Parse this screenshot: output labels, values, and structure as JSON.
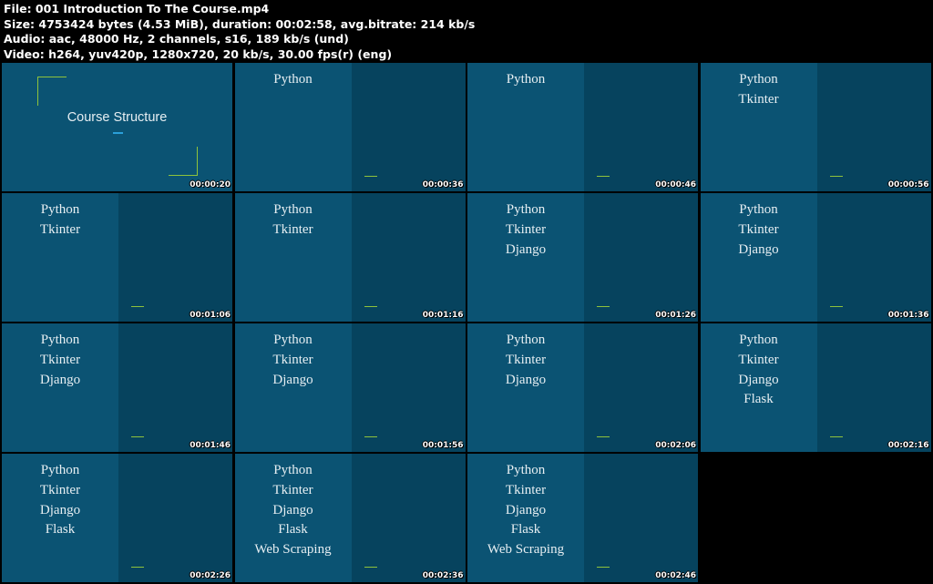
{
  "info": {
    "file_line": "File: 001 Introduction To The Course.mp4",
    "size_line": "Size: 4753424 bytes (4.53 MiB), duration: 00:02:58, avg.bitrate: 214 kb/s",
    "audio_line": "Audio: aac, 48000 Hz, 2 channels, s16, 189 kb/s (und)",
    "video_line": "Video: h264, yuv420p, 1280x720, 20 kb/s, 30.00 fps(r) (eng)"
  },
  "title_slide": {
    "title": "Course Structure",
    "timestamp": "00:00:20"
  },
  "thumbnails": [
    {
      "timestamp": "00:00:36",
      "topics": [
        "Python"
      ]
    },
    {
      "timestamp": "00:00:46",
      "topics": [
        "Python"
      ]
    },
    {
      "timestamp": "00:00:56",
      "topics": [
        "Python",
        "Tkinter"
      ]
    },
    {
      "timestamp": "00:01:06",
      "topics": [
        "Python",
        "Tkinter"
      ]
    },
    {
      "timestamp": "00:01:16",
      "topics": [
        "Python",
        "Tkinter"
      ]
    },
    {
      "timestamp": "00:01:26",
      "topics": [
        "Python",
        "Tkinter",
        "Django"
      ]
    },
    {
      "timestamp": "00:01:36",
      "topics": [
        "Python",
        "Tkinter",
        "Django"
      ]
    },
    {
      "timestamp": "00:01:46",
      "topics": [
        "Python",
        "Tkinter",
        "Django"
      ]
    },
    {
      "timestamp": "00:01:56",
      "topics": [
        "Python",
        "Tkinter",
        "Django"
      ]
    },
    {
      "timestamp": "00:02:06",
      "topics": [
        "Python",
        "Tkinter",
        "Django"
      ]
    },
    {
      "timestamp": "00:02:16",
      "topics": [
        "Python",
        "Tkinter",
        "Django",
        "Flask"
      ]
    },
    {
      "timestamp": "00:02:26",
      "topics": [
        "Python",
        "Tkinter",
        "Django",
        "Flask"
      ]
    },
    {
      "timestamp": "00:02:36",
      "topics": [
        "Python",
        "Tkinter",
        "Django",
        "Flask",
        "Web Scraping"
      ]
    },
    {
      "timestamp": "00:02:46",
      "topics": [
        "Python",
        "Tkinter",
        "Django",
        "Flask",
        "Web Scraping"
      ]
    }
  ],
  "colors": {
    "slide_bg": "#0b5373",
    "panel_bg": "#06435e",
    "accent_green": "#8fc23c",
    "accent_blue": "#2a9fd8"
  }
}
